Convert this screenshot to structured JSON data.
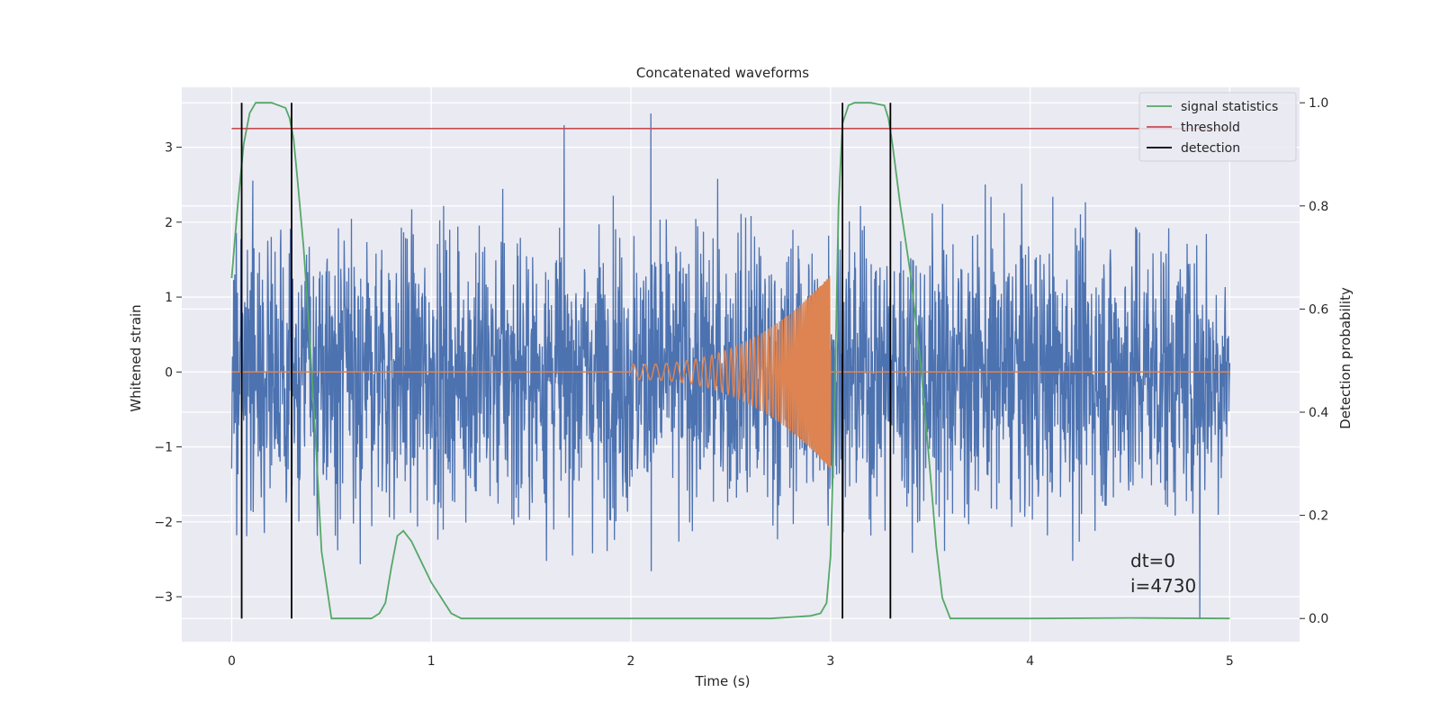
{
  "chart_data": {
    "type": "line",
    "title": "Concatenated waveforms",
    "xlabel": "Time (s)",
    "ylabel": "Whitened strain",
    "y2label": "Detection probability",
    "xlim": [
      -0.25,
      5.35
    ],
    "ylim": [
      -3.6,
      3.8
    ],
    "y2lim": [
      -0.045,
      1.03
    ],
    "xticks": [
      0,
      1,
      2,
      3,
      4,
      5
    ],
    "yticks": [
      -3,
      -2,
      -1,
      0,
      1,
      2,
      3
    ],
    "y2ticks": [
      0.0,
      0.2,
      0.4,
      0.6,
      0.8,
      1.0
    ],
    "xtick_labels": [
      "0",
      "1",
      "2",
      "3",
      "4",
      "5"
    ],
    "ytick_labels": [
      "−3",
      "−2",
      "−1",
      "0",
      "1",
      "2",
      "3"
    ],
    "y2tick_labels": [
      "0.0",
      "0.2",
      "0.4",
      "0.6",
      "0.8",
      "1.0"
    ],
    "grid": true,
    "legend_position": "top-right",
    "colors": {
      "noise": "#4c72b0",
      "chirp": "#dd8452",
      "signal": "#55a868",
      "threshold": "#c44e52",
      "detection": "#000000",
      "background": "#eaeaf2"
    },
    "series": [
      {
        "name": "signal statistics",
        "axis": "right",
        "x": [
          0,
          0.03,
          0.06,
          0.09,
          0.12,
          0.2,
          0.27,
          0.29,
          0.31,
          0.33,
          0.36,
          0.39,
          0.42,
          0.45,
          0.5,
          0.6,
          0.7,
          0.74,
          0.77,
          0.8,
          0.83,
          0.86,
          0.9,
          0.95,
          1.0,
          1.05,
          1.1,
          1.15,
          1.3,
          2.0,
          2.7,
          2.9,
          2.95,
          2.98,
          3.0,
          3.02,
          3.04,
          3.06,
          3.09,
          3.12,
          3.2,
          3.27,
          3.29,
          3.31,
          3.35,
          3.4,
          3.45,
          3.5,
          3.53,
          3.56,
          3.6,
          4.0,
          4.5,
          5.0
        ],
        "values": [
          0.66,
          0.8,
          0.92,
          0.98,
          1.0,
          1.0,
          0.99,
          0.97,
          0.93,
          0.85,
          0.72,
          0.55,
          0.35,
          0.13,
          0.0,
          0.0,
          0.0,
          0.01,
          0.03,
          0.1,
          0.16,
          0.17,
          0.15,
          0.11,
          0.07,
          0.04,
          0.01,
          0.0,
          0.0,
          0.0,
          0.0,
          0.005,
          0.01,
          0.03,
          0.12,
          0.4,
          0.8,
          0.96,
          0.995,
          1.0,
          1.0,
          0.995,
          0.97,
          0.92,
          0.8,
          0.67,
          0.5,
          0.28,
          0.14,
          0.04,
          0.0,
          0.0,
          0.001,
          0.0
        ]
      },
      {
        "name": "threshold",
        "axis": "right",
        "x": [
          0,
          5.0
        ],
        "values": [
          0.95,
          0.95
        ]
      },
      {
        "name": "detection",
        "axis": "right",
        "type": "vlines",
        "x": [
          0.05,
          0.3,
          3.06,
          3.3
        ],
        "ymin": 0.0,
        "ymax": 1.0
      },
      {
        "axis": "left",
        "type": "noise",
        "x_range": [
          0,
          5
        ],
        "typical_amplitude": 1.3,
        "peak_max": 3.45,
        "peak_min": -3.3
      },
      {
        "axis": "left",
        "type": "chirp",
        "flat_ranges": [
          [
            0,
            2.0
          ],
          [
            3.0,
            5.0
          ]
        ],
        "chirp_range": [
          2.0,
          3.0
        ],
        "amplitude_start": 0.1,
        "amplitude_end": 1.3
      }
    ],
    "annotations": [
      "dt=0",
      "i=4730"
    ]
  }
}
